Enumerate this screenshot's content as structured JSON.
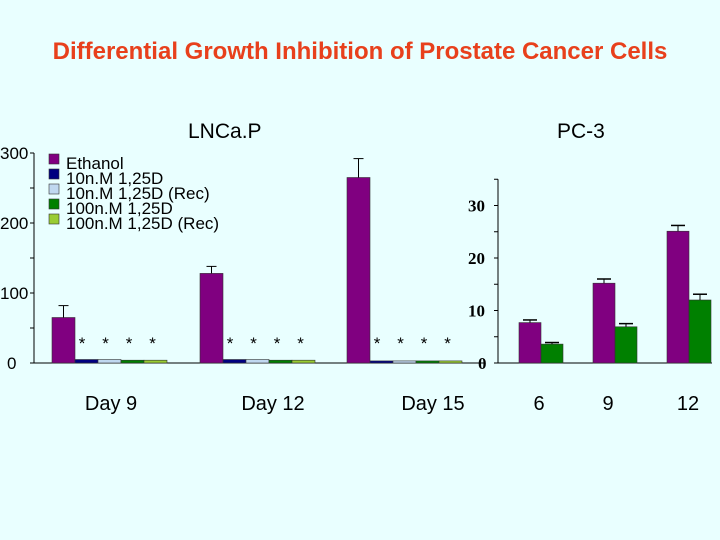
{
  "title": "Differential Growth Inhibition of Prostate Cancer Cells",
  "colors": {
    "background": "#e9ffff",
    "title": "#e8401c",
    "purple": "#800080",
    "navy": "#000080",
    "lightblue": "#c0d8f0",
    "green": "#008000",
    "lightgreen": "#99cc33"
  },
  "chart_data": [
    {
      "type": "bar",
      "title": "LNCa.P",
      "categories": [
        "Day 9",
        "Day 12",
        "Day 15"
      ],
      "ylim": [
        0,
        300
      ],
      "yticks": [
        "0",
        "100",
        "200",
        "300"
      ],
      "grid": false,
      "legend_position": "top-left",
      "series": [
        {
          "name": "Ethanol",
          "color": "#800080",
          "values": [
            65,
            128,
            265
          ],
          "errors": [
            17,
            10,
            27
          ]
        },
        {
          "name": "10n.M 1,25D",
          "color": "#000080",
          "values": [
            5,
            5,
            3
          ],
          "errors": [
            0,
            0,
            0
          ]
        },
        {
          "name": "10n.M 1,25D (Rec)",
          "color": "#c0d8f0",
          "values": [
            5,
            5,
            3
          ],
          "errors": [
            0,
            0,
            0
          ]
        },
        {
          "name": "100n.M 1,25D",
          "color": "#008000",
          "values": [
            4,
            4,
            3
          ],
          "errors": [
            0,
            0,
            0
          ]
        },
        {
          "name": "100n.M 1,25D (Rec)",
          "color": "#99cc33",
          "values": [
            4,
            4,
            3
          ],
          "errors": [
            0,
            0,
            0
          ]
        }
      ],
      "annotations": [
        "*",
        "*",
        "*",
        "*"
      ]
    },
    {
      "type": "bar",
      "title": "PC-3",
      "categories": [
        "6",
        "9",
        "12"
      ],
      "ylim": [
        0,
        35
      ],
      "yticks": [
        "0",
        "10",
        "20",
        "30"
      ],
      "grid": false,
      "series": [
        {
          "color": "#800080",
          "values": [
            7.7,
            15.2,
            25.1
          ],
          "errors": [
            0.5,
            0.8,
            1.1
          ]
        },
        {
          "color": "#008000",
          "values": [
            3.6,
            6.9,
            12.0
          ],
          "errors": [
            0.3,
            0.6,
            1.1
          ]
        }
      ]
    }
  ]
}
